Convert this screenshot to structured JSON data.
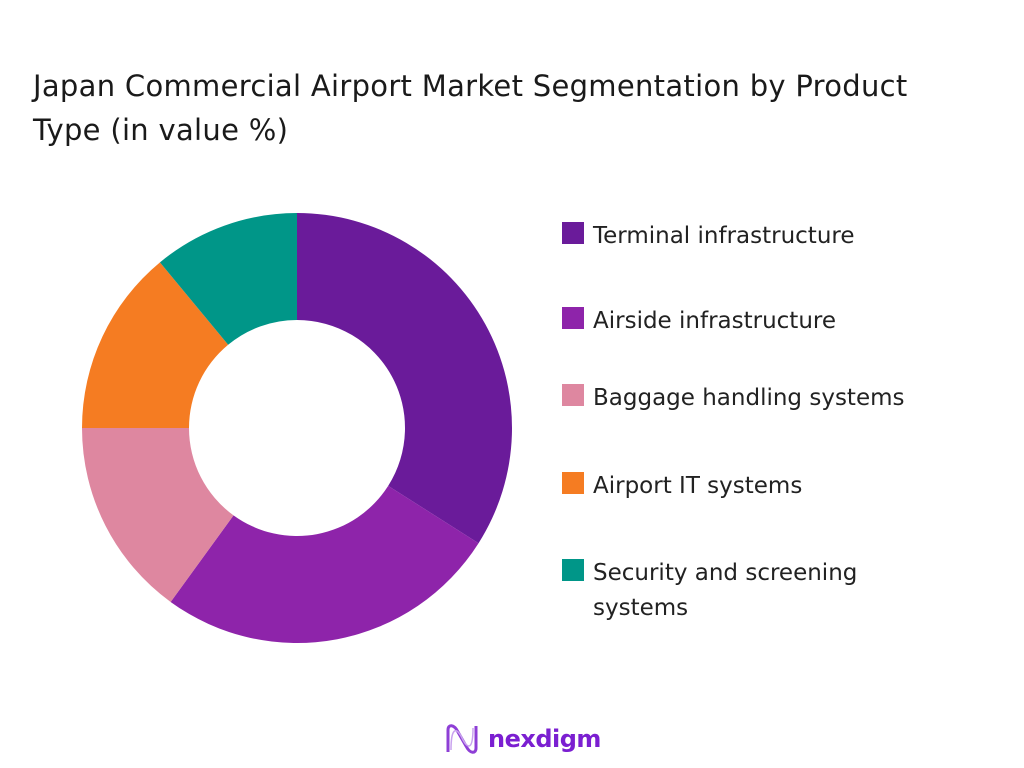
{
  "chart_data": {
    "type": "pie",
    "donut": true,
    "title": "Japan Commercial Airport Market Segmentation by Product Type (in value %)",
    "categories": [
      "Terminal infrastructure",
      "Airside infrastructure",
      "Baggage handling systems",
      "Airport IT systems",
      "Security and screening systems"
    ],
    "values": [
      34,
      26,
      15,
      14,
      11
    ],
    "colors": [
      "#6a1b9a",
      "#8e24aa",
      "#de87a0",
      "#f57c22",
      "#009688"
    ],
    "legend_position": "right",
    "start": "top, clockwise"
  },
  "brand": {
    "name": "nexdigm",
    "color": "#7b1fd1"
  }
}
